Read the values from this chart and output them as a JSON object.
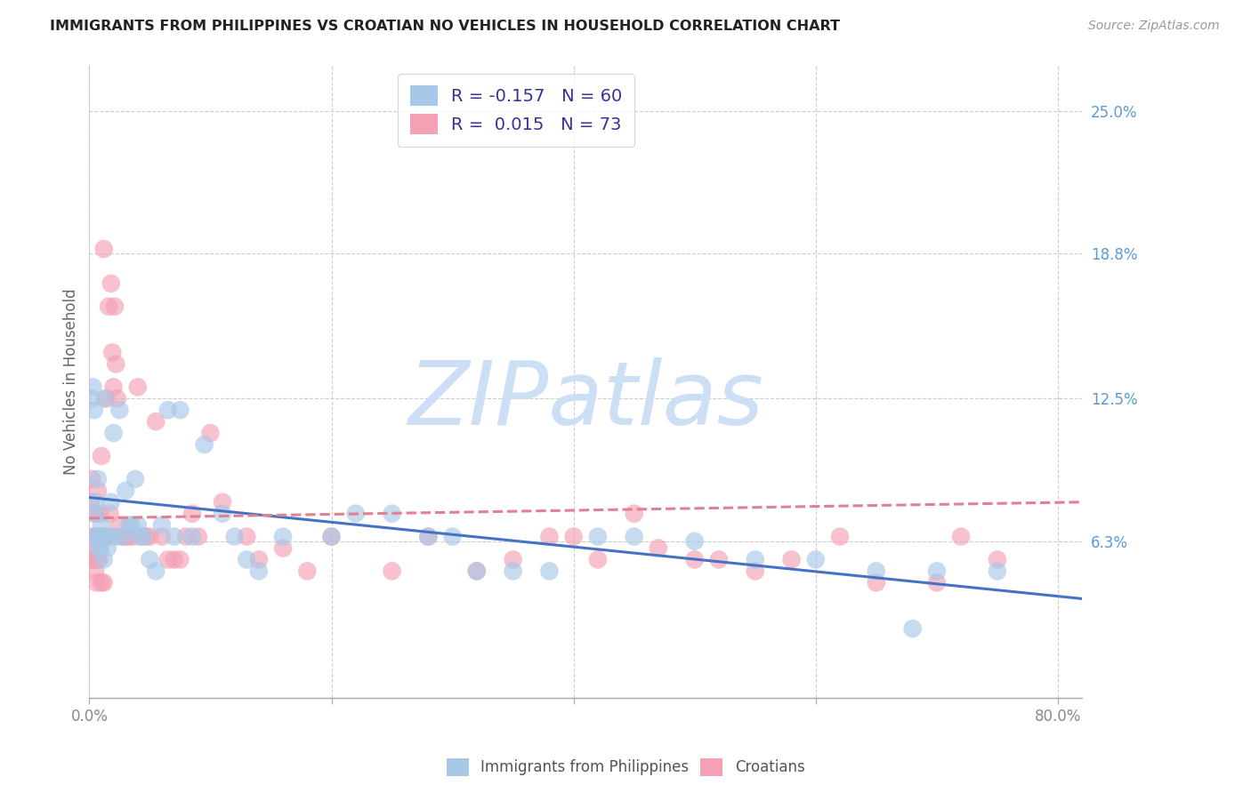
{
  "title": "IMMIGRANTS FROM PHILIPPINES VS CROATIAN NO VEHICLES IN HOUSEHOLD CORRELATION CHART",
  "source": "Source: ZipAtlas.com",
  "ylabel": "No Vehicles in Household",
  "xlim": [
    0.0,
    0.82
  ],
  "ylim": [
    -0.005,
    0.27
  ],
  "ytick_labels_right": [
    "25.0%",
    "18.8%",
    "12.5%",
    "6.3%"
  ],
  "ytick_values_right": [
    0.25,
    0.188,
    0.125,
    0.063
  ],
  "grid_color": "#cccccc",
  "background_color": "#ffffff",
  "watermark": "ZIPatlas",
  "watermark_color": "#cddff5",
  "blue_color": "#a8c8e8",
  "pink_color": "#f4a0b5",
  "blue_edge": "#7bafd4",
  "pink_edge": "#f07090",
  "series_blue_x": [
    0.002,
    0.003,
    0.004,
    0.005,
    0.006,
    0.007,
    0.008,
    0.009,
    0.01,
    0.012,
    0.013,
    0.015,
    0.018,
    0.02,
    0.022,
    0.025,
    0.028,
    0.03,
    0.033,
    0.035,
    0.038,
    0.04,
    0.042,
    0.045,
    0.05,
    0.055,
    0.06,
    0.065,
    0.07,
    0.075,
    0.085,
    0.095,
    0.11,
    0.12,
    0.13,
    0.14,
    0.16,
    0.2,
    0.22,
    0.25,
    0.28,
    0.3,
    0.32,
    0.35,
    0.38,
    0.42,
    0.45,
    0.5,
    0.55,
    0.6,
    0.65,
    0.68,
    0.7,
    0.75,
    0.005,
    0.008,
    0.01,
    0.012,
    0.015,
    0.018
  ],
  "series_blue_y": [
    0.125,
    0.13,
    0.12,
    0.08,
    0.075,
    0.09,
    0.065,
    0.06,
    0.07,
    0.055,
    0.125,
    0.06,
    0.08,
    0.11,
    0.065,
    0.12,
    0.065,
    0.085,
    0.07,
    0.07,
    0.09,
    0.07,
    0.065,
    0.065,
    0.055,
    0.05,
    0.07,
    0.12,
    0.065,
    0.12,
    0.065,
    0.105,
    0.075,
    0.065,
    0.055,
    0.05,
    0.065,
    0.065,
    0.075,
    0.075,
    0.065,
    0.065,
    0.05,
    0.05,
    0.05,
    0.065,
    0.065,
    0.063,
    0.055,
    0.055,
    0.05,
    0.025,
    0.05,
    0.05,
    0.065,
    0.06,
    0.065,
    0.065,
    0.065,
    0.065
  ],
  "series_pink_x": [
    0.001,
    0.002,
    0.003,
    0.004,
    0.005,
    0.006,
    0.007,
    0.008,
    0.009,
    0.01,
    0.011,
    0.012,
    0.013,
    0.014,
    0.015,
    0.016,
    0.017,
    0.018,
    0.019,
    0.02,
    0.021,
    0.022,
    0.023,
    0.025,
    0.027,
    0.03,
    0.033,
    0.036,
    0.04,
    0.043,
    0.047,
    0.05,
    0.055,
    0.06,
    0.065,
    0.07,
    0.075,
    0.08,
    0.085,
    0.09,
    0.1,
    0.11,
    0.13,
    0.14,
    0.16,
    0.18,
    0.2,
    0.25,
    0.28,
    0.32,
    0.35,
    0.38,
    0.4,
    0.42,
    0.45,
    0.47,
    0.5,
    0.52,
    0.55,
    0.58,
    0.62,
    0.65,
    0.7,
    0.72,
    0.75,
    0.003,
    0.004,
    0.005,
    0.006,
    0.007,
    0.008,
    0.01,
    0.012
  ],
  "series_pink_y": [
    0.08,
    0.09,
    0.065,
    0.075,
    0.065,
    0.06,
    0.085,
    0.065,
    0.075,
    0.1,
    0.065,
    0.19,
    0.065,
    0.125,
    0.065,
    0.165,
    0.075,
    0.175,
    0.145,
    0.13,
    0.165,
    0.14,
    0.125,
    0.07,
    0.065,
    0.065,
    0.065,
    0.065,
    0.13,
    0.065,
    0.065,
    0.065,
    0.115,
    0.065,
    0.055,
    0.055,
    0.055,
    0.065,
    0.075,
    0.065,
    0.11,
    0.08,
    0.065,
    0.055,
    0.06,
    0.05,
    0.065,
    0.05,
    0.065,
    0.05,
    0.055,
    0.065,
    0.065,
    0.055,
    0.075,
    0.06,
    0.055,
    0.055,
    0.05,
    0.055,
    0.065,
    0.045,
    0.045,
    0.065,
    0.055,
    0.055,
    0.055,
    0.05,
    0.045,
    0.055,
    0.055,
    0.045,
    0.045
  ],
  "legend_R_blue": "-0.157",
  "legend_N_blue": "60",
  "legend_R_pink": "0.015",
  "legend_N_pink": "73",
  "trendline_blue_x0": 0.0,
  "trendline_blue_y0": 0.082,
  "trendline_blue_x1": 0.82,
  "trendline_blue_y1": 0.038,
  "trendline_blue_color": "#4472c4",
  "trendline_pink_x0": 0.0,
  "trendline_pink_y0": 0.073,
  "trendline_pink_x1": 0.82,
  "trendline_pink_y1": 0.08,
  "trendline_pink_color": "#e08090"
}
